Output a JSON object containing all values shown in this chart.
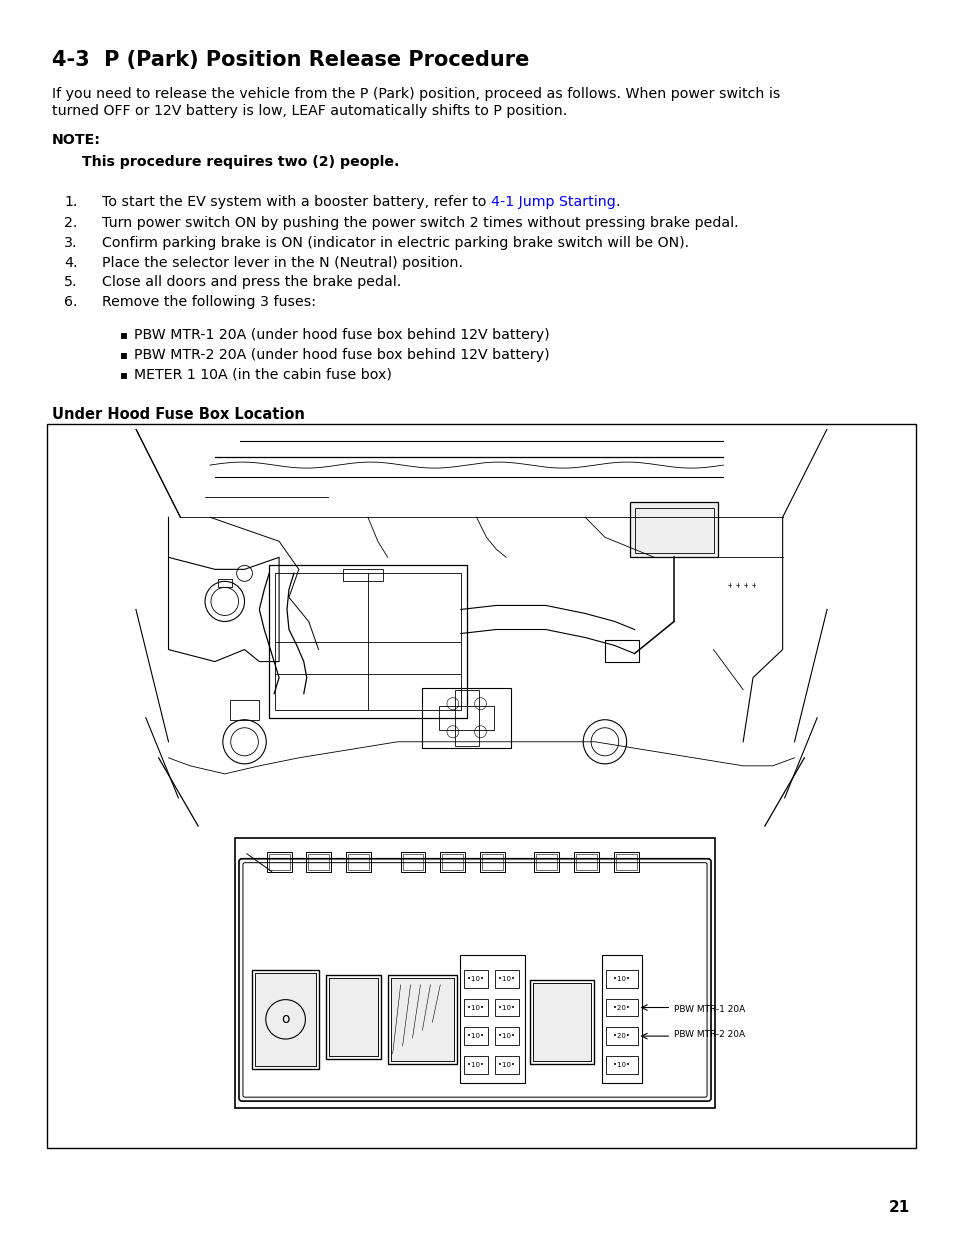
{
  "title": "4-3  P (Park) Position Release Procedure",
  "intro_line1": "If you need to release the vehicle from the P (Park) position, proceed as follows. When power switch is",
  "intro_line2": "turned OFF or 12V battery is low, LEAF automatically shifts to P position.",
  "note_label": "NOTE:",
  "note_text": "This procedure requires two (2) people.",
  "step1_pre": "To start the EV system with a booster battery, refer to ",
  "step1_link": "4-1 Jump Starting",
  "step1_post": ".",
  "step2": "Turn power switch ON by pushing the power switch 2 times without pressing brake pedal.",
  "step3": "Confirm parking brake is ON (indicator in electric parking brake switch will be ON).",
  "step4": "Place the selector lever in the N (Neutral) position.",
  "step5": "Close all doors and press the brake pedal.",
  "step6": "Remove the following 3 fuses:",
  "bullet1": "PBW MTR-1 20A (under hood fuse box behind 12V battery)",
  "bullet2": "PBW MTR-2 20A (under hood fuse box behind 12V battery)",
  "bullet3": "METER 1 10A (in the cabin fuse box)",
  "diagram_title": "Under Hood Fuse Box Location",
  "label_pbw2": "PBW MTR-2 20A",
  "label_pbw1": "PBW MTR-1 20A",
  "page_number": "21",
  "bg_color": "#ffffff",
  "text_color": "#000000",
  "link_color": "#0000FF",
  "title_fontsize": 15,
  "body_fontsize": 10.2,
  "note_fontsize": 10.2,
  "step_fontsize": 10.2,
  "diagram_title_fontsize": 10.5,
  "label_fontsize": 8.0
}
